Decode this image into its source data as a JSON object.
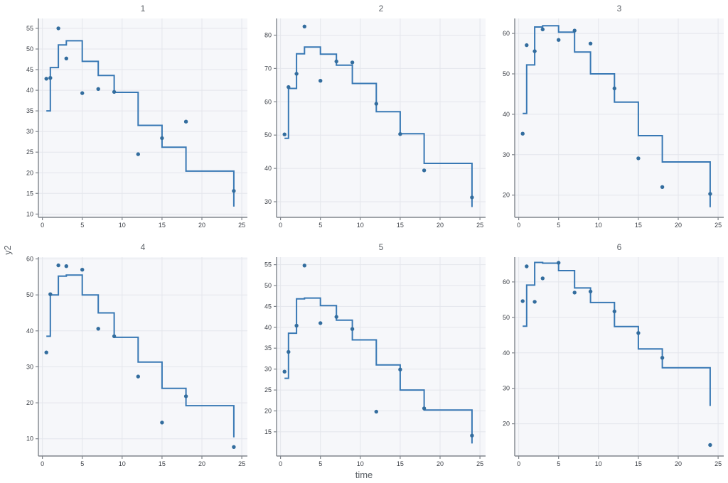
{
  "figure": {
    "x_axis_label": "time",
    "y_axis_label": "y2",
    "line_color": "#3878b4",
    "point_color": "#336d9e",
    "panel_bg": "#f6f7fa",
    "grid_color": "#e4e6ec",
    "axis_color": "#80858c",
    "tick_label_color": "#3b3f46",
    "title_color": "#5b6066"
  },
  "chart_data": [
    {
      "type": "line",
      "line_shape": "step-hv",
      "title": "1",
      "xlabel": "time",
      "ylabel": "y2",
      "x_ticks": [
        0,
        5,
        10,
        15,
        20,
        25
      ],
      "y_ticks": [
        10,
        15,
        20,
        25,
        30,
        35,
        40,
        45,
        50,
        55
      ],
      "x_range": [
        -0.5,
        25.7
      ],
      "y_range": [
        9.2,
        57.4
      ],
      "grid": true,
      "step_line": {
        "x": [
          0.5,
          1,
          2,
          3,
          5,
          7,
          9,
          12,
          15,
          18,
          24
        ],
        "levels": [
          35,
          45.5,
          51,
          52,
          47,
          43.6,
          39.5,
          31.5,
          26.2,
          20.4
        ],
        "end_y": 11.8
      },
      "points": {
        "x": [
          0.5,
          1,
          2,
          3,
          5,
          7,
          9,
          12,
          15,
          18,
          24
        ],
        "y": [
          42.8,
          43,
          55,
          47.7,
          39.3,
          40.3,
          39.6,
          24.5,
          28.4,
          32.4,
          15.6
        ]
      }
    },
    {
      "type": "line",
      "line_shape": "step-hv",
      "title": "2",
      "xlabel": "time",
      "ylabel": "y2",
      "x_ticks": [
        0,
        5,
        10,
        15,
        20,
        25
      ],
      "y_ticks": [
        30,
        40,
        50,
        60,
        70,
        80
      ],
      "x_range": [
        -0.5,
        25.7
      ],
      "y_range": [
        25.3,
        85
      ],
      "grid": true,
      "step_line": {
        "x": [
          0.5,
          1,
          2,
          3,
          5,
          7,
          9,
          12,
          15,
          18,
          24
        ],
        "levels": [
          49,
          64,
          74.4,
          76.4,
          74.3,
          71,
          65.5,
          57,
          50.4,
          41.5
        ],
        "end_y": 28.4
      },
      "points": {
        "x": [
          0.5,
          1,
          2,
          3,
          5,
          7,
          9,
          12,
          15,
          18,
          24
        ],
        "y": [
          50.2,
          64.4,
          68.4,
          82.6,
          66.3,
          72.1,
          71.8,
          59.4,
          50.3,
          39.4,
          31.3
        ]
      }
    },
    {
      "type": "line",
      "line_shape": "step-hv",
      "title": "3",
      "xlabel": "time",
      "ylabel": "y2",
      "x_ticks": [
        0,
        5,
        10,
        15,
        20,
        25
      ],
      "y_ticks": [
        20,
        30,
        40,
        50,
        60
      ],
      "x_range": [
        -0.5,
        25.7
      ],
      "y_range": [
        14.5,
        63.7
      ],
      "grid": true,
      "step_line": {
        "x": [
          0.5,
          1,
          2,
          3,
          5,
          7,
          9,
          12,
          15,
          18,
          24
        ],
        "levels": [
          40.2,
          52.2,
          61.6,
          61.9,
          60.3,
          55.4,
          50,
          43,
          34.7,
          28.2
        ],
        "end_y": 17
      },
      "points": {
        "x": [
          0.5,
          1,
          2,
          3,
          5,
          7,
          9,
          12,
          15,
          18,
          24
        ],
        "y": [
          35.2,
          57.1,
          55.6,
          61,
          58.4,
          60.7,
          57.5,
          46.4,
          29.1,
          22,
          20.3
        ]
      }
    },
    {
      "type": "line",
      "line_shape": "step-hv",
      "title": "4",
      "xlabel": "time",
      "ylabel": "y2",
      "x_ticks": [
        0,
        5,
        10,
        15,
        20,
        25
      ],
      "y_ticks": [
        10,
        20,
        30,
        40,
        50,
        60
      ],
      "x_range": [
        -0.5,
        25.7
      ],
      "y_range": [
        5.2,
        60.5
      ],
      "grid": true,
      "step_line": {
        "x": [
          0.5,
          1,
          2,
          3,
          5,
          7,
          9,
          12,
          15,
          18,
          24
        ],
        "levels": [
          38.5,
          50,
          55.2,
          55.5,
          50,
          45,
          38.2,
          31.3,
          24,
          19.2
        ],
        "end_y": 10.4
      },
      "points": {
        "x": [
          0.5,
          1,
          2,
          3,
          5,
          7,
          9,
          12,
          15,
          18,
          24
        ],
        "y": [
          34,
          50.2,
          58.2,
          58,
          57,
          40.6,
          38.5,
          27.3,
          14.5,
          21.8,
          7.7
        ]
      }
    },
    {
      "type": "line",
      "line_shape": "step-hv",
      "title": "5",
      "xlabel": "time",
      "ylabel": "y2",
      "x_ticks": [
        0,
        5,
        10,
        15,
        20,
        25
      ],
      "y_ticks": [
        15,
        20,
        25,
        30,
        35,
        40,
        45,
        50,
        55
      ],
      "x_range": [
        -0.5,
        25.7
      ],
      "y_range": [
        9.2,
        56.8
      ],
      "grid": true,
      "step_line": {
        "x": [
          0.5,
          1,
          2,
          3,
          5,
          7,
          9,
          12,
          15,
          18,
          24
        ],
        "levels": [
          27.8,
          38.6,
          46.8,
          47,
          45.2,
          41.7,
          37,
          31,
          25,
          20.2
        ],
        "end_y": 12.2
      },
      "points": {
        "x": [
          0.5,
          1,
          2,
          3,
          5,
          7,
          9,
          12,
          15,
          18,
          24
        ],
        "y": [
          29.4,
          34.1,
          40.4,
          54.8,
          41,
          42.5,
          39.6,
          19.8,
          29.9,
          20.6,
          14.1
        ]
      }
    },
    {
      "type": "line",
      "line_shape": "step-hv",
      "title": "6",
      "xlabel": "time",
      "ylabel": "y2",
      "x_ticks": [
        0,
        5,
        10,
        15,
        20,
        25
      ],
      "y_ticks": [
        20,
        30,
        40,
        50,
        60
      ],
      "x_range": [
        -0.5,
        25.7
      ],
      "y_range": [
        10.9,
        67
      ],
      "grid": true,
      "step_line": {
        "x": [
          0.5,
          1,
          2,
          3,
          5,
          7,
          9,
          12,
          15,
          18,
          24
        ],
        "levels": [
          47.5,
          59.1,
          65.5,
          65.3,
          63.2,
          58.3,
          54.2,
          47.4,
          41.1,
          35.8
        ],
        "end_y": 25
      },
      "points": {
        "x": [
          0.5,
          1,
          2,
          3,
          5,
          7,
          9,
          12,
          15,
          18,
          24
        ],
        "y": [
          54.6,
          64.4,
          54.4,
          61,
          65.4,
          57,
          57.3,
          51.7,
          45.6,
          38.6,
          14
        ]
      }
    }
  ]
}
